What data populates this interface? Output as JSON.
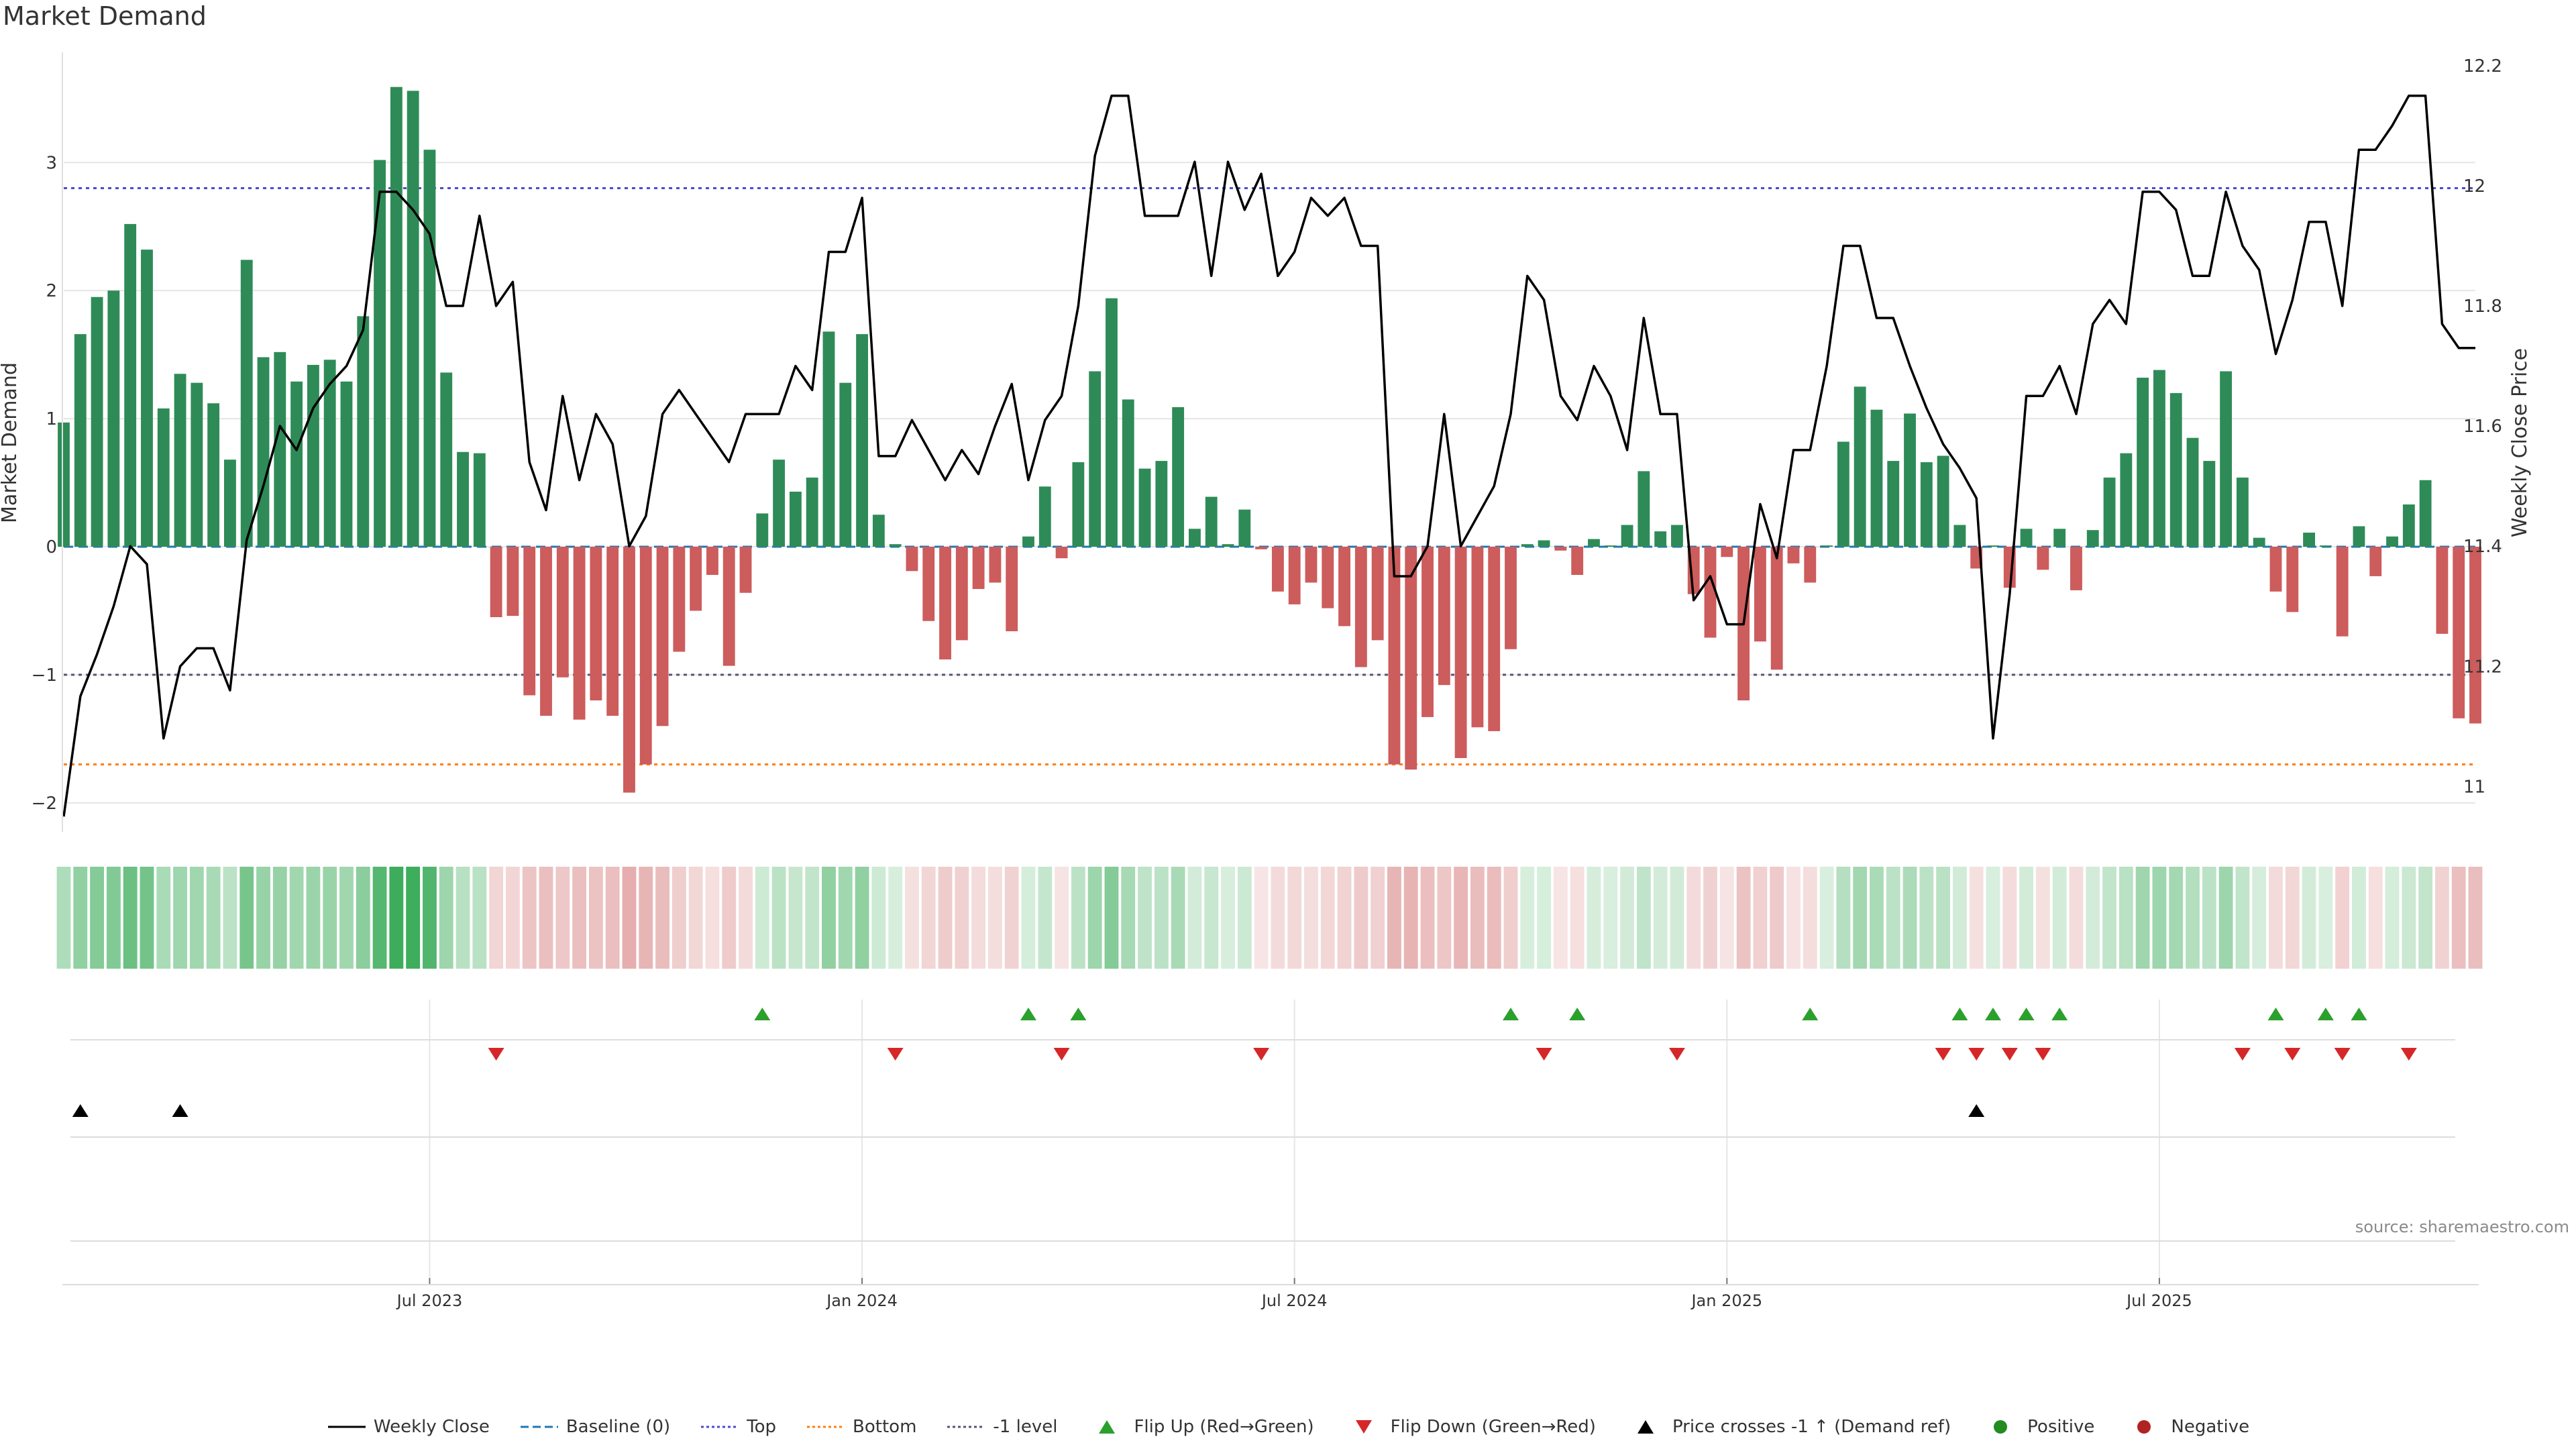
{
  "title": "Market Demand",
  "source": "source: sharemaestro.com",
  "colors": {
    "positive_bar": "#2e8b57",
    "negative_bar": "#cd5c5c",
    "price_line": "#000000",
    "baseline": "#1f77b4",
    "top_line": "#4b4bcc",
    "bottom_line": "#ff7f0e",
    "minus1_line": "#555577",
    "flip_up": "#2ca02c",
    "flip_down": "#d62728",
    "cross": "#000000",
    "positive_dot": "#228b22",
    "negative_dot": "#b22222",
    "grid": "#e6e6e6"
  },
  "chart_data": {
    "type": "bar",
    "title": "Market Demand",
    "ylabel": "Market Demand",
    "y2label": "Weekly Close Price",
    "ylim": [
      -2.2,
      3.85
    ],
    "y2lim": [
      10.93,
      12.22
    ],
    "yticks": [
      -2,
      -1,
      0,
      1,
      2,
      3
    ],
    "ytick_labels": [
      "−2",
      "−1",
      "0",
      "1",
      "2",
      "3"
    ],
    "y2ticks": [
      11,
      11.2,
      11.4,
      11.6,
      11.8,
      12,
      12.2
    ],
    "y2tick_labels": [
      "11",
      "11.2",
      "11.4",
      "11.6",
      "11.8",
      "12",
      "12.2"
    ],
    "xticks": [
      {
        "week": 22,
        "label": "Jul 2023"
      },
      {
        "week": 48,
        "label": "Jan 2024"
      },
      {
        "week": 74,
        "label": "Jul 2024"
      },
      {
        "week": 100,
        "label": "Jan 2025"
      },
      {
        "week": 126,
        "label": "Jul 2025"
      }
    ],
    "reference_lines": {
      "baseline": 0,
      "top": 2.8,
      "bottom": -1.7,
      "minus1": -1
    },
    "demand": [
      0.97,
      1.66,
      1.95,
      2.0,
      2.52,
      2.32,
      1.08,
      1.35,
      1.28,
      1.12,
      0.68,
      2.24,
      1.48,
      1.52,
      1.29,
      1.42,
      1.46,
      1.29,
      1.8,
      3.02,
      3.59,
      3.56,
      3.1,
      1.36,
      0.74,
      0.73,
      -0.55,
      -0.54,
      -1.16,
      -1.32,
      -1.02,
      -1.35,
      -1.2,
      -1.32,
      -1.92,
      -1.7,
      -1.4,
      -0.82,
      -0.5,
      -0.22,
      -0.93,
      -0.36,
      0.26,
      0.68,
      0.43,
      0.54,
      1.68,
      1.28,
      1.66,
      0.25,
      0.02,
      -0.19,
      -0.58,
      -0.88,
      -0.73,
      -0.33,
      -0.28,
      -0.66,
      0.08,
      0.47,
      -0.09,
      0.66,
      1.37,
      1.94,
      1.15,
      0.61,
      0.67,
      1.09,
      0.14,
      0.39,
      0.02,
      0.29,
      -0.02,
      -0.35,
      -0.45,
      -0.28,
      -0.48,
      -0.62,
      -0.94,
      -0.73,
      -1.7,
      -1.74,
      -1.33,
      -1.08,
      -1.65,
      -1.41,
      -1.44,
      -0.8,
      0.02,
      0.05,
      -0.03,
      -0.22,
      0.06,
      0.01,
      0.17,
      0.59,
      0.12,
      0.17,
      -0.37,
      -0.71,
      -0.08,
      -1.2,
      -0.74,
      -0.96,
      -0.13,
      -0.28,
      0.01,
      0.82,
      1.25,
      1.07,
      0.67,
      1.04,
      0.66,
      0.71,
      0.17,
      -0.17,
      0.01,
      -0.32,
      0.14,
      -0.18,
      0.14,
      -0.34,
      0.13,
      0.54,
      0.73,
      1.32,
      1.38,
      1.2,
      0.85,
      0.67,
      1.37,
      0.54,
      0.07,
      -0.35,
      -0.51,
      0.11,
      0.01,
      -0.7,
      0.16,
      -0.23,
      0.08,
      0.33,
      0.52,
      -0.68,
      -1.34,
      -1.38
    ],
    "weekly_close": [
      10.95,
      11.15,
      11.22,
      11.3,
      11.4,
      11.37,
      11.08,
      11.2,
      11.23,
      11.23,
      11.16,
      11.41,
      11.5,
      11.6,
      11.56,
      11.63,
      11.67,
      11.7,
      11.76,
      11.99,
      11.99,
      11.96,
      11.92,
      11.8,
      11.8,
      11.95,
      11.8,
      11.84,
      11.54,
      11.46,
      11.65,
      11.51,
      11.62,
      11.57,
      11.4,
      11.45,
      11.62,
      11.66,
      11.62,
      11.58,
      11.54,
      11.62,
      11.62,
      11.62,
      11.7,
      11.66,
      11.89,
      11.89,
      11.98,
      11.55,
      11.55,
      11.61,
      11.56,
      11.51,
      11.56,
      11.52,
      11.6,
      11.67,
      11.51,
      11.61,
      11.65,
      11.8,
      12.05,
      12.15,
      12.15,
      11.95,
      11.95,
      11.95,
      12.04,
      11.85,
      12.04,
      11.96,
      12.02,
      11.85,
      11.89,
      11.98,
      11.95,
      11.98,
      11.9,
      11.9,
      11.35,
      11.35,
      11.4,
      11.62,
      11.4,
      11.45,
      11.5,
      11.62,
      11.85,
      11.81,
      11.65,
      11.61,
      11.7,
      11.65,
      11.56,
      11.78,
      11.62,
      11.62,
      11.31,
      11.35,
      11.27,
      11.27,
      11.47,
      11.38,
      11.56,
      11.56,
      11.7,
      11.9,
      11.9,
      11.78,
      11.78,
      11.7,
      11.63,
      11.57,
      11.53,
      11.48,
      11.08,
      11.32,
      11.65,
      11.65,
      11.7,
      11.62,
      11.77,
      11.81,
      11.77,
      11.99,
      11.99,
      11.96,
      11.85,
      11.85,
      11.99,
      11.9,
      11.86,
      11.72,
      11.81,
      11.94,
      11.94,
      11.8,
      12.06,
      12.06,
      12.1,
      12.15,
      12.15,
      11.77,
      11.73,
      11.73
    ],
    "flip_up_weeks": [
      42,
      58,
      61,
      87,
      91,
      105,
      114,
      116,
      118,
      120,
      133,
      136,
      138
    ],
    "flip_down_weeks": [
      26,
      50,
      60,
      72,
      89,
      97,
      113,
      115,
      117,
      119,
      131,
      134,
      137,
      141
    ],
    "cross_weeks": [
      1,
      7,
      115
    ],
    "series": [
      {
        "name": "Weekly Close"
      },
      {
        "name": "Baseline (0)"
      },
      {
        "name": "Top"
      },
      {
        "name": "Bottom"
      },
      {
        "name": "-1 level"
      },
      {
        "name": "Flip Up (Red→Green)"
      },
      {
        "name": "Flip Down (Green→Red)"
      },
      {
        "name": "Price crosses -1 ↑ (Demand ref)"
      },
      {
        "name": "Positive"
      },
      {
        "name": "Negative"
      }
    ]
  },
  "legend": {
    "weekly_close": "Weekly Close",
    "baseline": "Baseline (0)",
    "top": "Top",
    "bottom": "Bottom",
    "minus1": "-1 level",
    "flip_up": "Flip Up (Red→Green)",
    "flip_down": "Flip Down (Green→Red)",
    "cross": "Price crosses -1 ↑ (Demand ref)",
    "positive": "Positive",
    "negative": "Negative"
  }
}
